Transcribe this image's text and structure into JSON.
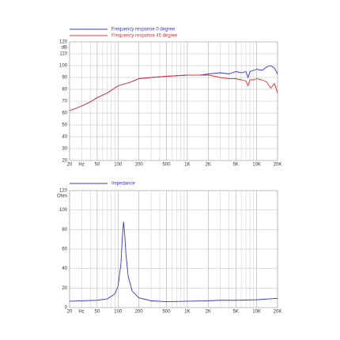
{
  "chart_data": [
    {
      "type": "line",
      "xscale": "log",
      "y_unit": "dB",
      "x_unit": "Hz",
      "grid": true,
      "x": [
        20,
        30,
        40,
        50,
        70,
        100,
        150,
        200,
        300,
        500,
        700,
        1000,
        1500,
        2000,
        2500,
        3000,
        4000,
        5000,
        6000,
        7000,
        7500,
        8000,
        9000,
        10000,
        12000,
        14000,
        16000,
        18000,
        20000
      ],
      "series": [
        {
          "name": "Frequency response 0 degree",
          "color": "#3535e0",
          "values": [
            62,
            66,
            69.5,
            73,
            77,
            83,
            86,
            89,
            90,
            91,
            91.5,
            92,
            92,
            93,
            93.5,
            94,
            93,
            95,
            94,
            95,
            90,
            95,
            96,
            97,
            96,
            99,
            100,
            98,
            93
          ]
        },
        {
          "name": "Frequency response 45 degree",
          "color": "#e83030",
          "values": [
            62,
            66,
            69.5,
            73,
            77,
            83,
            86,
            89,
            90,
            91,
            91.5,
            92,
            92,
            92,
            91,
            90,
            89,
            89,
            88,
            87,
            83,
            88,
            88,
            89,
            88,
            86,
            81,
            85,
            77
          ]
        }
      ],
      "xlim": [
        20,
        20000
      ],
      "xticks": [
        20,
        50,
        100,
        200,
        500,
        {
          "value": 1000,
          "label": "1K"
        },
        {
          "value": 2000,
          "label": "2K"
        },
        {
          "value": 5000,
          "label": "5K"
        },
        {
          "value": 10000,
          "label": "10K"
        },
        {
          "value": 20000,
          "label": "20K"
        }
      ],
      "xgrid": [
        30,
        40,
        60,
        70,
        80,
        90,
        300,
        400,
        600,
        700,
        800,
        900,
        3000,
        4000,
        6000,
        7000,
        8000,
        9000
      ],
      "ylim": [
        20,
        120
      ],
      "yticks": [
        20,
        30,
        40,
        50,
        60,
        70,
        80,
        90,
        100,
        110,
        120
      ]
    },
    {
      "type": "line",
      "xscale": "log",
      "y_unit": "Ohm",
      "x_unit": "Hz",
      "grid": true,
      "x": [
        20,
        50,
        70,
        90,
        100,
        110,
        115,
        120,
        125,
        130,
        140,
        160,
        200,
        300,
        500,
        1000,
        2000,
        3000,
        5000,
        10000,
        20000
      ],
      "series": [
        {
          "name": "Impedance",
          "color": "#3535e0",
          "values": [
            6.5,
            7.5,
            9,
            14,
            22,
            45,
            70,
            88,
            75,
            55,
            32,
            17,
            10,
            7,
            6,
            6.5,
            7,
            7.5,
            7.5,
            8,
            9.5
          ]
        }
      ],
      "xlim": [
        20,
        20000
      ],
      "xticks": [
        20,
        50,
        100,
        200,
        500,
        {
          "value": 1000,
          "label": "1K"
        },
        {
          "value": 2000,
          "label": "2K"
        },
        {
          "value": 5000,
          "label": "5K"
        },
        {
          "value": 10000,
          "label": "10K"
        },
        {
          "value": 20000,
          "label": "20K"
        }
      ],
      "xgrid": [
        30,
        40,
        60,
        70,
        80,
        90,
        300,
        400,
        600,
        700,
        800,
        900,
        3000,
        4000,
        6000,
        7000,
        8000,
        9000
      ],
      "ylim": [
        0,
        120
      ],
      "yticks": [
        0,
        20,
        40,
        60,
        80,
        100,
        120
      ]
    }
  ]
}
